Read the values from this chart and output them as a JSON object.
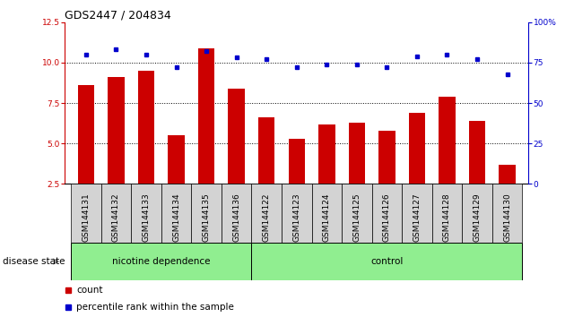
{
  "title": "GDS2447 / 204834",
  "categories": [
    "GSM144131",
    "GSM144132",
    "GSM144133",
    "GSM144134",
    "GSM144135",
    "GSM144136",
    "GSM144122",
    "GSM144123",
    "GSM144124",
    "GSM144125",
    "GSM144126",
    "GSM144127",
    "GSM144128",
    "GSM144129",
    "GSM144130"
  ],
  "count_values": [
    8.6,
    9.1,
    9.5,
    5.5,
    10.9,
    8.4,
    6.6,
    5.3,
    6.2,
    6.3,
    5.8,
    6.9,
    7.9,
    6.4,
    3.7
  ],
  "percentile_values": [
    80,
    83,
    80,
    72,
    82,
    78,
    77,
    72,
    74,
    74,
    72,
    79,
    80,
    77,
    68
  ],
  "bar_color": "#cc0000",
  "dot_color": "#0000cc",
  "ylim_left": [
    2.5,
    12.5
  ],
  "ylim_right": [
    0,
    100
  ],
  "yticks_left": [
    2.5,
    5.0,
    7.5,
    10.0,
    12.5
  ],
  "yticks_right": [
    0,
    25,
    50,
    75,
    100
  ],
  "grid_values": [
    5.0,
    7.5,
    10.0
  ],
  "group1_label": "nicotine dependence",
  "group1_count": 6,
  "group2_label": "control",
  "group2_count": 9,
  "group_label_prefix": "disease state",
  "legend_count_label": "count",
  "legend_percentile_label": "percentile rank within the sample",
  "group_bg_color": "#90ee90",
  "tick_bg_color": "#d3d3d3",
  "background_color": "#ffffff",
  "title_fontsize": 9,
  "tick_fontsize": 6.5
}
